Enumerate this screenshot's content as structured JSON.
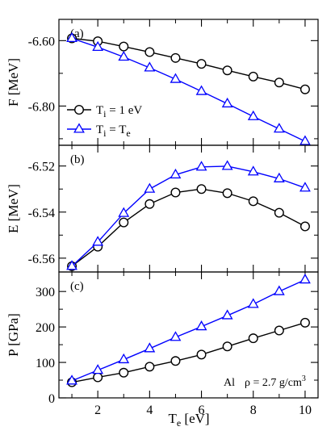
{
  "chart_data": [
    {
      "type": "line",
      "panel_label": "(a)",
      "ylabel": {
        "main": "F",
        "unit": " [MeV]"
      },
      "ylim": [
        -6.92,
        -6.535
      ],
      "yticks": [
        -6.6,
        -6.8
      ],
      "yminor": [
        -6.9,
        -6.7
      ],
      "ytick_labels": [
        "-6.60",
        "-6.80"
      ],
      "xlim": [
        0.5,
        10.5
      ],
      "series": [
        {
          "name": "T_i = 1 eV",
          "marker": "circle",
          "color": "#000000",
          "x": [
            1,
            2,
            3,
            4,
            5,
            6,
            7,
            8,
            9,
            10
          ],
          "y": [
            -6.593,
            -6.602,
            -6.618,
            -6.635,
            -6.653,
            -6.671,
            -6.691,
            -6.71,
            -6.728,
            -6.749
          ]
        },
        {
          "name": "T_i = T_e",
          "marker": "triangle",
          "color": "#0000ff",
          "x": [
            1,
            2,
            3,
            4,
            5,
            6,
            7,
            8,
            9,
            10
          ],
          "y": [
            -6.593,
            -6.62,
            -6.65,
            -6.683,
            -6.718,
            -6.755,
            -6.793,
            -6.832,
            -6.87,
            -6.908
          ]
        }
      ],
      "legend": {
        "position": "lower-left",
        "entries": [
          {
            "prefix": "T",
            "sub": "i",
            "suffix": " = 1 eV"
          },
          {
            "prefix": "T",
            "sub": "i",
            "suffix": " = T",
            "suffix_sub": "e"
          }
        ]
      }
    },
    {
      "type": "line",
      "panel_label": "(b)",
      "ylabel": {
        "main": "E",
        "unit": " [MeV]"
      },
      "ylim": [
        -6.566,
        -6.511
      ],
      "yticks": [
        -6.52,
        -6.54,
        -6.56
      ],
      "yminor": [
        -6.53,
        -6.55
      ],
      "ytick_labels": [
        "-6.52",
        "-6.54",
        "-6.56"
      ],
      "xlim": [
        0.5,
        10.5
      ],
      "series": [
        {
          "name": "T_i = 1 eV",
          "marker": "circle",
          "color": "#000000",
          "x": [
            1,
            2,
            3,
            4,
            5,
            6,
            7,
            8,
            9,
            10
          ],
          "y": [
            -6.5635,
            -6.555,
            -6.5445,
            -6.5365,
            -6.5315,
            -6.53,
            -6.5318,
            -6.5353,
            -6.5403,
            -6.5462
          ]
        },
        {
          "name": "T_i = T_e",
          "marker": "triangle",
          "color": "#0000ff",
          "x": [
            1,
            2,
            3,
            4,
            5,
            6,
            7,
            8,
            9,
            10
          ],
          "y": [
            -6.5635,
            -6.553,
            -6.5405,
            -6.53,
            -6.5238,
            -6.5204,
            -6.5201,
            -6.5225,
            -6.5255,
            -6.5295
          ]
        }
      ]
    },
    {
      "type": "line",
      "panel_label": "(c)",
      "ylabel": {
        "main": "P",
        "unit": " [GPa]"
      },
      "xlabel": {
        "main": "T",
        "sub": "e",
        "unit": " [eV]"
      },
      "ylim": [
        0,
        355
      ],
      "yticks": [
        0,
        100,
        200,
        300
      ],
      "yminor": [
        50,
        150,
        250
      ],
      "ytick_labels": [
        "0",
        "100",
        "200",
        "300"
      ],
      "xlim": [
        0.5,
        10.5
      ],
      "xticks": [
        2,
        4,
        6,
        8,
        10
      ],
      "xminor": [
        1,
        3,
        5,
        7,
        9
      ],
      "xtick_labels": [
        "2",
        "4",
        "6",
        "8",
        "10"
      ],
      "series": [
        {
          "name": "T_i = 1 eV",
          "marker": "circle",
          "color": "#000000",
          "x": [
            1,
            2,
            3,
            4,
            5,
            6,
            7,
            8,
            9,
            10
          ],
          "y": [
            44,
            58,
            71,
            88,
            104,
            122,
            145,
            168,
            190,
            212
          ]
        },
        {
          "name": "T_i = T_e",
          "marker": "triangle",
          "color": "#0000ff",
          "x": [
            1,
            2,
            3,
            4,
            5,
            6,
            7,
            8,
            9,
            10
          ],
          "y": [
            48,
            78,
            108,
            139,
            171,
            201,
            232,
            264,
            300,
            333
          ]
        }
      ],
      "annotation": {
        "material": "Al",
        "prefix": "ρ = 2.7 g/cm",
        "sup": "3"
      }
    }
  ]
}
